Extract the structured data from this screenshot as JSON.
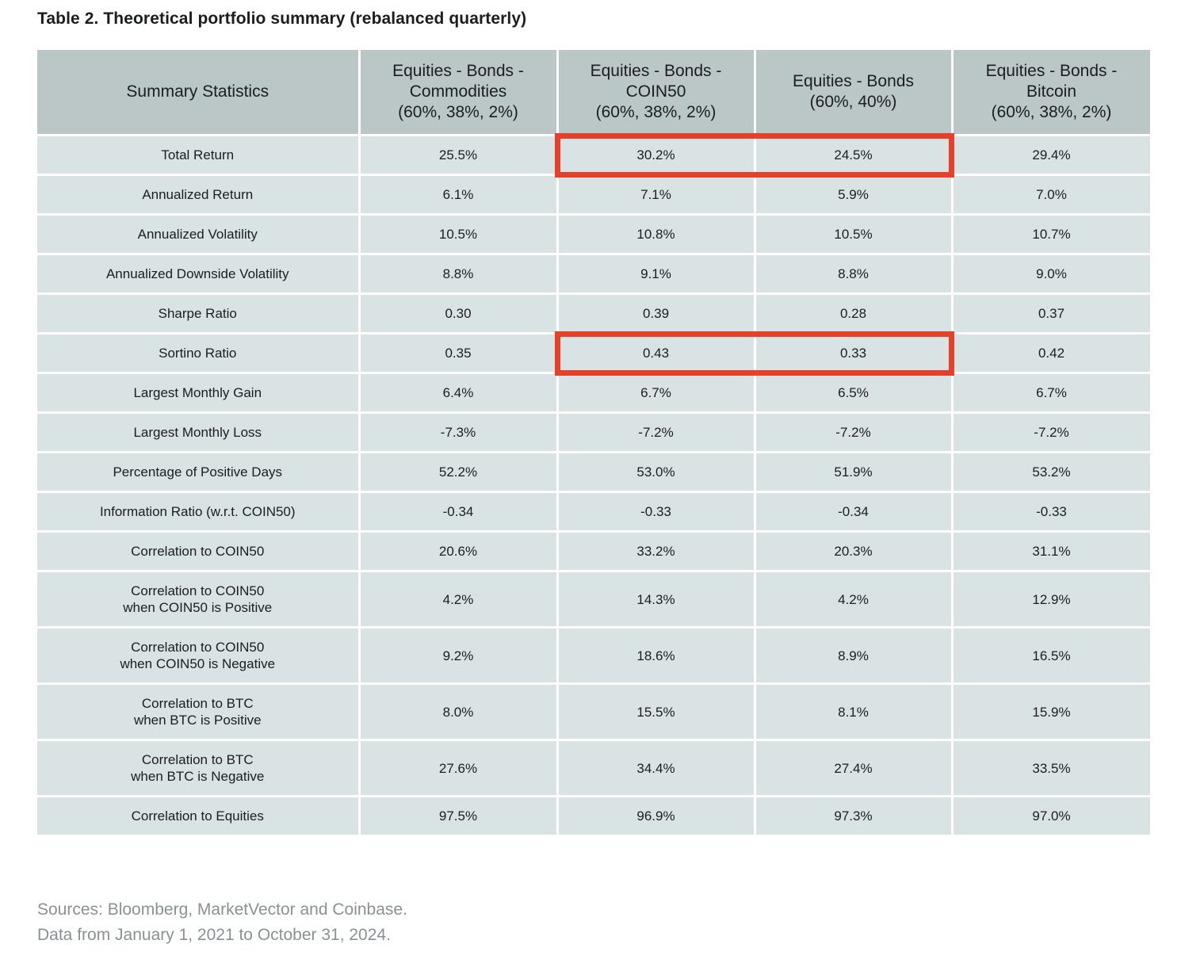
{
  "title": "Table 2. Theoretical portfolio summary (rebalanced quarterly)",
  "table": {
    "headers": [
      [
        "Summary Statistics"
      ],
      [
        "Equities - Bonds -",
        "Commodities",
        "(60%, 38%, 2%)"
      ],
      [
        "Equities - Bonds -",
        "COIN50",
        "(60%, 38%, 2%)"
      ],
      [
        "Equities - Bonds",
        "(60%, 40%)"
      ],
      [
        "Equities - Bonds -",
        "Bitcoin",
        "(60%, 38%, 2%)"
      ]
    ],
    "rows": [
      {
        "label": [
          "Total Return"
        ],
        "values": [
          "25.5%",
          "30.2%",
          "24.5%",
          "29.4%"
        ]
      },
      {
        "label": [
          "Annualized Return"
        ],
        "values": [
          "6.1%",
          "7.1%",
          "5.9%",
          "7.0%"
        ]
      },
      {
        "label": [
          "Annualized Volatility"
        ],
        "values": [
          "10.5%",
          "10.8%",
          "10.5%",
          "10.7%"
        ]
      },
      {
        "label": [
          "Annualized Downside Volatility"
        ],
        "values": [
          "8.8%",
          "9.1%",
          "8.8%",
          "9.0%"
        ]
      },
      {
        "label": [
          "Sharpe Ratio"
        ],
        "values": [
          "0.30",
          "0.39",
          "0.28",
          "0.37"
        ]
      },
      {
        "label": [
          "Sortino Ratio"
        ],
        "values": [
          "0.35",
          "0.43",
          "0.33",
          "0.42"
        ]
      },
      {
        "label": [
          "Largest Monthly Gain"
        ],
        "values": [
          "6.4%",
          "6.7%",
          "6.5%",
          "6.7%"
        ]
      },
      {
        "label": [
          "Largest Monthly Loss"
        ],
        "values": [
          "-7.3%",
          "-7.2%",
          "-7.2%",
          "-7.2%"
        ]
      },
      {
        "label": [
          "Percentage of Positive Days"
        ],
        "values": [
          "52.2%",
          "53.0%",
          "51.9%",
          "53.2%"
        ]
      },
      {
        "label": [
          "Information Ratio (w.r.t. COIN50)"
        ],
        "values": [
          "-0.34",
          "-0.33",
          "-0.34",
          "-0.33"
        ]
      },
      {
        "label": [
          "Correlation to COIN50"
        ],
        "values": [
          "20.6%",
          "33.2%",
          "20.3%",
          "31.1%"
        ]
      },
      {
        "label": [
          "Correlation to COIN50",
          "when COIN50 is Positive"
        ],
        "values": [
          "4.2%",
          "14.3%",
          "4.2%",
          "12.9%"
        ]
      },
      {
        "label": [
          "Correlation to COIN50",
          "when COIN50 is Negative"
        ],
        "values": [
          "9.2%",
          "18.6%",
          "8.9%",
          "16.5%"
        ]
      },
      {
        "label": [
          "Correlation to BTC",
          "when BTC is Positive"
        ],
        "values": [
          "8.0%",
          "15.5%",
          "8.1%",
          "15.9%"
        ]
      },
      {
        "label": [
          "Correlation to BTC",
          "when BTC is Negative"
        ],
        "values": [
          "27.6%",
          "34.4%",
          "27.4%",
          "33.5%"
        ]
      },
      {
        "label": [
          "Correlation to Equities"
        ],
        "values": [
          "97.5%",
          "96.9%",
          "97.3%",
          "97.0%"
        ]
      }
    ]
  },
  "highlight_color": "#e5402a",
  "highlights": [
    {
      "row": 0,
      "columns": [
        2,
        3
      ]
    },
    {
      "row": 5,
      "columns": [
        2,
        3
      ]
    }
  ],
  "sources": [
    "Sources: Bloomberg, MarketVector and Coinbase.",
    "Data from January 1, 2021 to October 31, 2024."
  ]
}
